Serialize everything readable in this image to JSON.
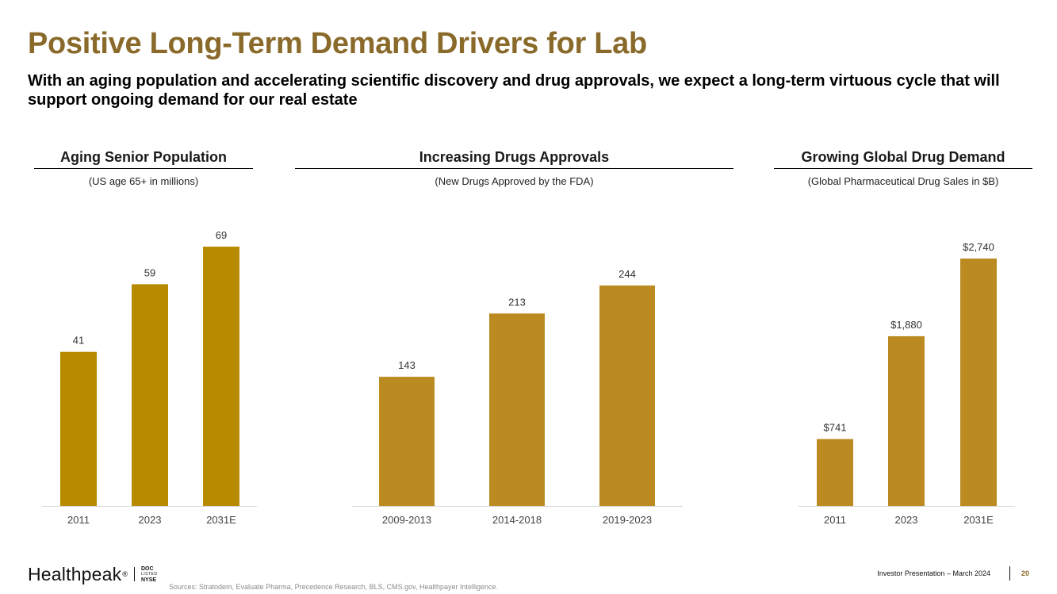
{
  "header": {
    "title": "Positive Long-Term Demand Drivers for Lab",
    "subtitle": "With an aging population and accelerating scientific discovery and drug approvals, we expect a long-term virtuous cycle that will support ongoing demand for our real estate"
  },
  "colors": {
    "title": "#8a6a2a",
    "bar_dark": "#b88a00",
    "bar_light": "#bb8b22",
    "axis": "#d9d9d9"
  },
  "chart_data": [
    {
      "type": "bar",
      "title": "Aging Senior Population",
      "subtitle": "(US age 65+ in millions)",
      "categories": [
        "2011",
        "2023",
        "2031E"
      ],
      "values": [
        41,
        59,
        69
      ],
      "value_labels": [
        "41",
        "59",
        "69"
      ],
      "ylim": [
        0,
        69
      ],
      "color": "#b88a00"
    },
    {
      "type": "bar",
      "title": "Increasing Drugs Approvals",
      "subtitle": "(New Drugs Approved by the FDA)",
      "categories": [
        "2009-2013",
        "2014-2018",
        "2019-2023"
      ],
      "values": [
        143,
        213,
        244
      ],
      "value_labels": [
        "143",
        "213",
        "244"
      ],
      "ylim": [
        0,
        244
      ],
      "color": "#bb8b22"
    },
    {
      "type": "bar",
      "title": "Growing Global Drug Demand",
      "subtitle": "(Global Pharmaceutical Drug Sales in $B)",
      "categories": [
        "2011",
        "2023",
        "2031E"
      ],
      "values": [
        741,
        1880,
        2740
      ],
      "value_labels": [
        "$741",
        "$1,880",
        "$2,740"
      ],
      "ylim": [
        0,
        2740
      ],
      "color": "#bb8b22"
    }
  ],
  "footer": {
    "logo_text": "Healthpeak",
    "logo_reg": "®",
    "badge_top": "DOC",
    "badge_mid": "LISTED",
    "badge_bottom": "NYSE",
    "sources": "Sources: Stratodem, Evaluate Pharma, Precedence Research, BLS, CMS.gov, Healthpayer Intelligence.",
    "presentation": "Investor Presentation – March 2024",
    "page_number": "20"
  }
}
